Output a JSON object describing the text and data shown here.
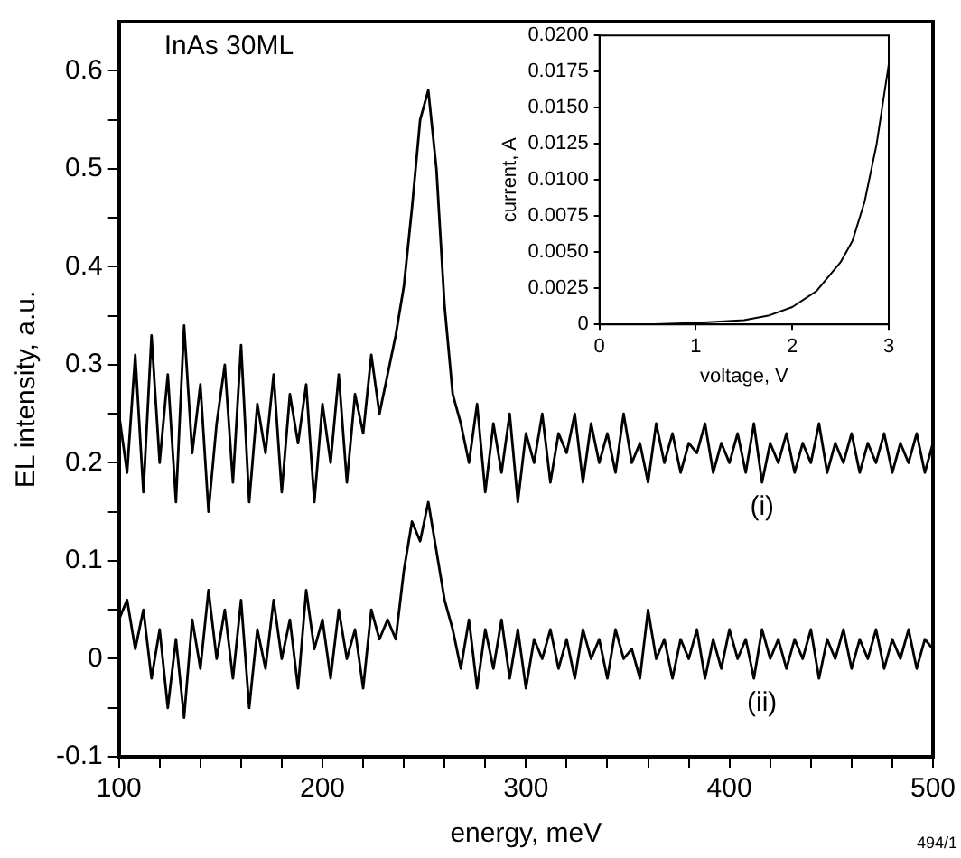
{
  "chart_data": [
    {
      "type": "line",
      "xlabel": "energy, meV",
      "ylabel": "EL intensity, a.u.",
      "grid": false,
      "legend": false,
      "marker": "none",
      "line_style": "solid",
      "annotations": [
        "InAs 30ML",
        "494/1"
      ],
      "xlim": [
        100,
        500
      ],
      "ylim": [
        -0.1,
        0.65
      ],
      "xticks": [
        100,
        {
          "value": 120,
          "label": null
        },
        {
          "value": 140,
          "label": null
        },
        {
          "value": 160,
          "label": null
        },
        {
          "value": 180,
          "label": null
        },
        200,
        {
          "value": 220,
          "label": null
        },
        {
          "value": 240,
          "label": null
        },
        {
          "value": 260,
          "label": null
        },
        {
          "value": 280,
          "label": null
        },
        300,
        {
          "value": 320,
          "label": null
        },
        {
          "value": 340,
          "label": null
        },
        {
          "value": 360,
          "label": null
        },
        {
          "value": 380,
          "label": null
        },
        400,
        {
          "value": 420,
          "label": null
        },
        {
          "value": 440,
          "label": null
        },
        {
          "value": 460,
          "label": null
        },
        {
          "value": 480,
          "label": null
        },
        500
      ],
      "yticks": [
        -0.1,
        {
          "value": -0.05,
          "label": null
        },
        0,
        {
          "value": 0.05,
          "label": null
        },
        0.1,
        {
          "value": 0.15,
          "label": null
        },
        0.2,
        {
          "value": 0.25,
          "label": null
        },
        0.3,
        {
          "value": 0.35,
          "label": null
        },
        0.4,
        {
          "value": 0.45,
          "label": null
        },
        0.5,
        {
          "value": 0.55,
          "label": null
        },
        0.6
      ],
      "x": [
        100,
        104,
        108,
        112,
        116,
        120,
        124,
        128,
        132,
        136,
        140,
        144,
        148,
        152,
        156,
        160,
        164,
        168,
        172,
        176,
        180,
        184,
        188,
        192,
        196,
        200,
        204,
        208,
        212,
        216,
        220,
        224,
        228,
        232,
        236,
        240,
        244,
        248,
        252,
        256,
        260,
        264,
        268,
        272,
        276,
        280,
        284,
        288,
        292,
        296,
        300,
        304,
        308,
        312,
        316,
        320,
        324,
        328,
        332,
        336,
        340,
        344,
        348,
        352,
        356,
        360,
        364,
        368,
        372,
        376,
        380,
        384,
        388,
        392,
        396,
        400,
        404,
        408,
        412,
        416,
        420,
        424,
        428,
        432,
        436,
        440,
        444,
        448,
        452,
        456,
        460,
        464,
        468,
        472,
        476,
        480,
        484,
        488,
        492,
        496,
        500
      ],
      "series": [
        {
          "name": "(i)",
          "color": "#000000",
          "values": [
            0.25,
            0.19,
            0.31,
            0.17,
            0.33,
            0.2,
            0.29,
            0.16,
            0.34,
            0.21,
            0.28,
            0.15,
            0.24,
            0.3,
            0.18,
            0.32,
            0.16,
            0.26,
            0.21,
            0.29,
            0.17,
            0.27,
            0.22,
            0.28,
            0.16,
            0.26,
            0.2,
            0.29,
            0.18,
            0.27,
            0.23,
            0.31,
            0.25,
            0.29,
            0.33,
            0.38,
            0.46,
            0.55,
            0.58,
            0.5,
            0.36,
            0.27,
            0.24,
            0.2,
            0.26,
            0.17,
            0.24,
            0.19,
            0.25,
            0.16,
            0.23,
            0.2,
            0.25,
            0.18,
            0.23,
            0.21,
            0.25,
            0.18,
            0.24,
            0.2,
            0.23,
            0.19,
            0.25,
            0.2,
            0.22,
            0.18,
            0.24,
            0.2,
            0.23,
            0.19,
            0.22,
            0.21,
            0.24,
            0.19,
            0.22,
            0.2,
            0.23,
            0.19,
            0.24,
            0.18,
            0.22,
            0.2,
            0.23,
            0.19,
            0.22,
            0.2,
            0.24,
            0.19,
            0.22,
            0.2,
            0.23,
            0.19,
            0.22,
            0.2,
            0.23,
            0.19,
            0.22,
            0.2,
            0.23,
            0.19,
            0.22
          ]
        },
        {
          "name": "(ii)",
          "color": "#000000",
          "values": [
            0.04,
            0.06,
            0.01,
            0.05,
            -0.02,
            0.03,
            -0.05,
            0.02,
            -0.06,
            0.04,
            -0.01,
            0.07,
            0.0,
            0.05,
            -0.02,
            0.06,
            -0.05,
            0.03,
            -0.01,
            0.06,
            0.0,
            0.04,
            -0.03,
            0.07,
            0.01,
            0.04,
            -0.02,
            0.05,
            0.0,
            0.03,
            -0.03,
            0.05,
            0.02,
            0.04,
            0.02,
            0.09,
            0.14,
            0.12,
            0.16,
            0.11,
            0.06,
            0.03,
            -0.01,
            0.04,
            -0.03,
            0.03,
            -0.01,
            0.04,
            -0.02,
            0.03,
            -0.03,
            0.02,
            0.0,
            0.03,
            -0.01,
            0.02,
            -0.02,
            0.03,
            0.0,
            0.02,
            -0.02,
            0.03,
            0.0,
            0.01,
            -0.02,
            0.05,
            0.0,
            0.02,
            -0.02,
            0.02,
            0.0,
            0.03,
            -0.02,
            0.02,
            -0.01,
            0.03,
            0.0,
            0.02,
            -0.02,
            0.03,
            0.0,
            0.02,
            -0.01,
            0.02,
            0.0,
            0.03,
            -0.02,
            0.02,
            0.0,
            0.03,
            -0.01,
            0.02,
            0.0,
            0.03,
            -0.01,
            0.02,
            0.0,
            0.03,
            -0.01,
            0.02,
            0.01
          ]
        }
      ]
    },
    {
      "type": "line",
      "xlabel": "voltage, V",
      "ylabel": "current, A",
      "grid": false,
      "legend": false,
      "marker": "none",
      "line_style": "solid",
      "xlim": [
        0,
        3
      ],
      "ylim": [
        0,
        0.02
      ],
      "xticks": [
        0,
        1,
        2,
        3
      ],
      "yticks": [
        0,
        0.0025,
        {
          "value": 0.005,
          "label": "0.0050"
        },
        0.0075,
        {
          "value": 0.01,
          "label": "0.0100"
        },
        0.0125,
        {
          "value": 0.015,
          "label": "0.0150"
        },
        0.0175,
        {
          "value": 0.02,
          "label": "0.0200"
        }
      ],
      "x": [
        0,
        0.5,
        1,
        1.25,
        1.5,
        1.75,
        2,
        2.25,
        2.5,
        2.625,
        2.75,
        2.875,
        3
      ],
      "series": [
        {
          "color": "#000000",
          "values": [
            0,
            0,
            0.0001,
            0.0002,
            0.0003,
            0.0006,
            0.0012,
            0.0023,
            0.0043,
            0.0058,
            0.0085,
            0.0125,
            0.018
          ]
        }
      ]
    }
  ]
}
